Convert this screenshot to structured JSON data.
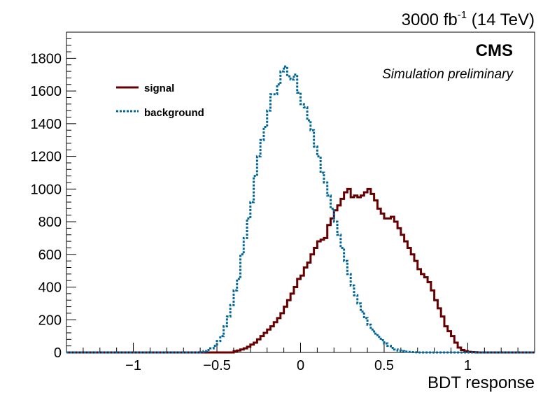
{
  "chart_data": {
    "type": "histogram",
    "title": "",
    "xlabel": "BDT response",
    "ylabel": "",
    "xlim": [
      -1.4,
      1.4
    ],
    "ylim": [
      0,
      1960
    ],
    "xticks": [
      -1,
      -0.5,
      0,
      0.5,
      1
    ],
    "xtick_labels": [
      "−1",
      "−0.5",
      "0",
      "0.5",
      "1"
    ],
    "yticks": [
      0,
      200,
      400,
      600,
      800,
      1000,
      1200,
      1400,
      1600,
      1800
    ],
    "ytick_labels": [
      "0",
      "200",
      "400",
      "600",
      "800",
      "1000",
      "1200",
      "1400",
      "1600",
      "1800"
    ],
    "lumi_label_main": "3000 fb",
    "lumi_label_sup": "-1",
    "lumi_label_energy": " (14 TeV)",
    "experiment_label": "CMS",
    "status_label": "Simulation preliminary",
    "grid": false,
    "legend_position": "top-left",
    "bin_width": 0.02,
    "series": [
      {
        "name": "signal",
        "color": "#660000",
        "line_style": "solid",
        "x_start": -0.4,
        "values": [
          8,
          12,
          18,
          25,
          35,
          48,
          60,
          80,
          100,
          120,
          140,
          160,
          185,
          210,
          240,
          280,
          320,
          360,
          400,
          450,
          470,
          520,
          550,
          600,
          640,
          680,
          690,
          700,
          780,
          820,
          870,
          900,
          940,
          980,
          1000,
          950,
          960,
          950,
          960,
          980,
          1000,
          970,
          930,
          880,
          850,
          820,
          820,
          830,
          800,
          760,
          720,
          680,
          640,
          600,
          560,
          510,
          480,
          460,
          430,
          380,
          320,
          270,
          220,
          160,
          130,
          100,
          60,
          30,
          15,
          8,
          4,
          2,
          1
        ]
      },
      {
        "name": "background",
        "color": "#006699",
        "line_style": "dotted",
        "x_start": -0.6,
        "values": [
          3,
          8,
          15,
          25,
          40,
          70,
          100,
          160,
          220,
          290,
          380,
          450,
          600,
          700,
          820,
          920,
          1080,
          1200,
          1300,
          1380,
          1480,
          1580,
          1580,
          1640,
          1720,
          1750,
          1690,
          1670,
          1700,
          1590,
          1520,
          1500,
          1420,
          1360,
          1260,
          1200,
          1100,
          1040,
          960,
          880,
          800,
          720,
          640,
          560,
          480,
          410,
          350,
          300,
          250,
          210,
          170,
          140,
          115,
          95,
          75,
          55,
          40,
          28,
          18,
          12,
          8,
          5,
          3,
          2,
          1
        ]
      }
    ]
  }
}
